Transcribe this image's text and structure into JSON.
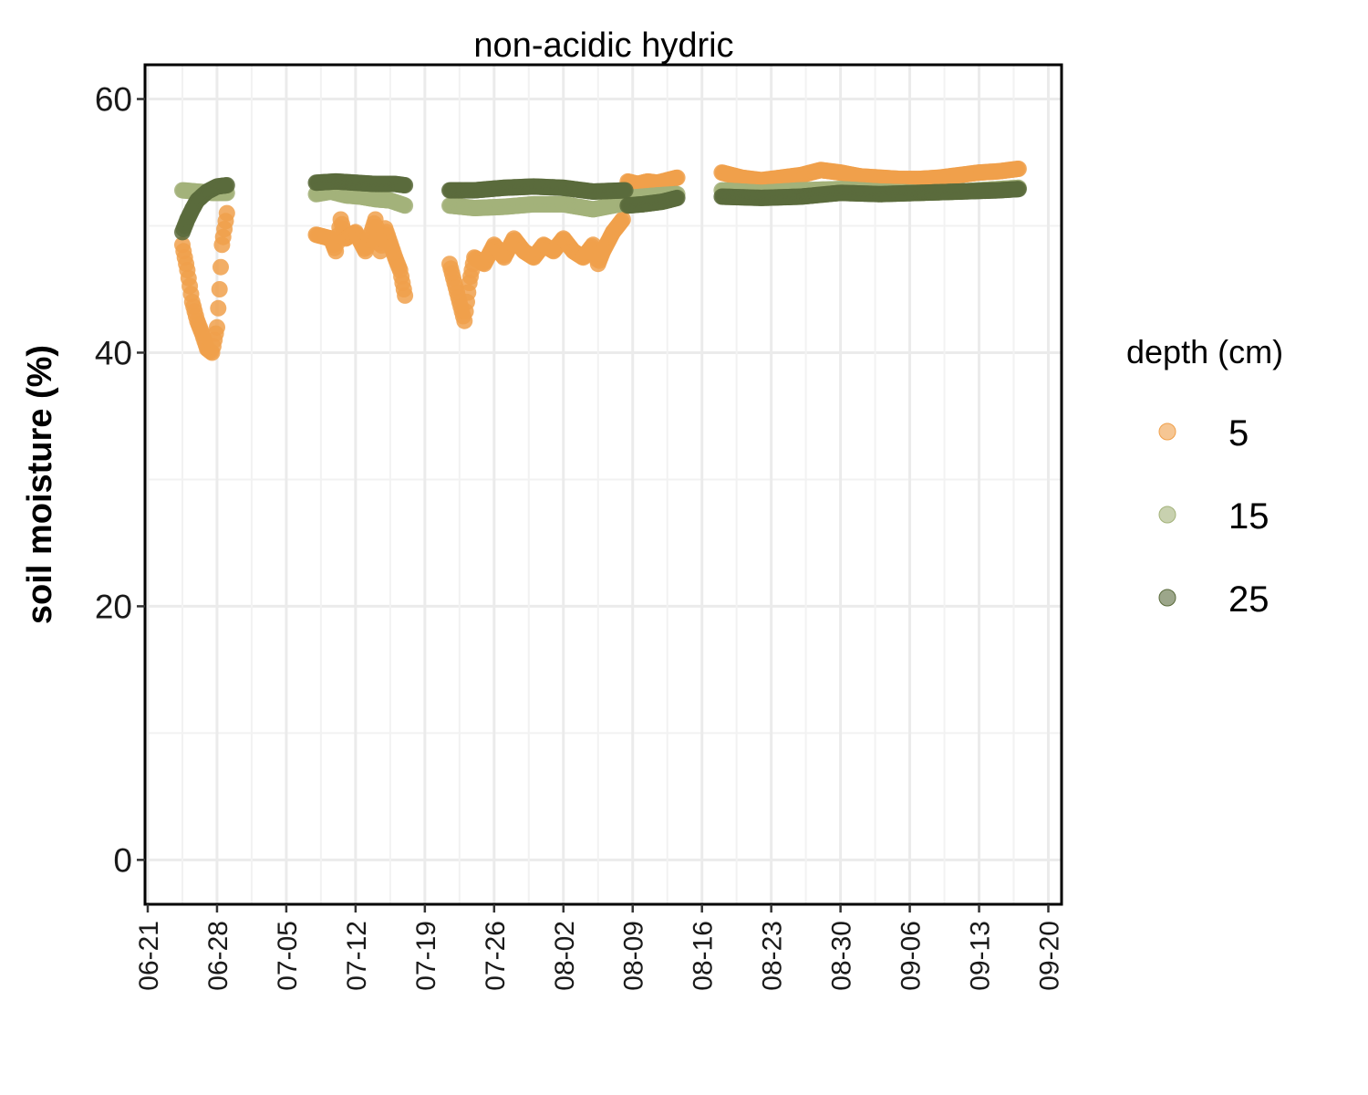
{
  "chart_data": {
    "type": "scatter",
    "title": "non-acidic hydric",
    "xlabel": "",
    "ylabel": "soil moisture (%)",
    "x_axis": {
      "type": "date",
      "year": 2021,
      "range": [
        "2021-06-21",
        "2021-09-20"
      ],
      "tick_labels": [
        "06-21",
        "06-28",
        "07-05",
        "07-12",
        "07-19",
        "07-26",
        "08-02",
        "08-09",
        "08-16",
        "08-23",
        "08-30",
        "09-06",
        "09-13",
        "09-20"
      ]
    },
    "ylim": [
      -3.5,
      62.7
    ],
    "y_ticks": [
      0,
      20,
      40,
      60
    ],
    "grid": true,
    "legend": {
      "title": "depth (cm)",
      "placement": "right"
    },
    "series": [
      {
        "name": "5",
        "color": "#F0A04B",
        "segments": [
          [
            [
              "2021-06-24 12:00",
              48.5
            ],
            [
              "2021-06-25 00:00",
              46.5
            ],
            [
              "2021-06-25 12:00",
              44.0
            ],
            [
              "2021-06-26 00:00",
              42.5
            ],
            [
              "2021-06-26 12:00",
              41.5
            ],
            [
              "2021-06-27 00:00",
              40.3
            ],
            [
              "2021-06-27 12:00",
              40.0
            ],
            [
              "2021-06-28 00:00",
              42.0
            ],
            [
              "2021-06-28 06:00",
              45.0
            ],
            [
              "2021-06-28 12:00",
              48.5
            ],
            [
              "2021-06-29 00:00",
              51.0
            ]
          ],
          [
            [
              "2021-07-08 00:00",
              49.3
            ],
            [
              "2021-07-09 12:00",
              49.0
            ],
            [
              "2021-07-10 00:00",
              48.0
            ],
            [
              "2021-07-10 12:00",
              50.5
            ],
            [
              "2021-07-11 00:00",
              49.0
            ],
            [
              "2021-07-12 00:00",
              49.5
            ],
            [
              "2021-07-13 00:00",
              48.0
            ],
            [
              "2021-07-14 00:00",
              50.5
            ],
            [
              "2021-07-14 12:00",
              48.0
            ],
            [
              "2021-07-15 00:00",
              49.8
            ],
            [
              "2021-07-16 00:00",
              47.5
            ],
            [
              "2021-07-16 12:00",
              46.5
            ],
            [
              "2021-07-17 00:00",
              44.5
            ]
          ],
          [
            [
              "2021-07-21 12:00",
              47.0
            ],
            [
              "2021-07-22 00:00",
              45.5
            ],
            [
              "2021-07-22 12:00",
              44.0
            ],
            [
              "2021-07-23 00:00",
              42.5
            ],
            [
              "2021-07-23 12:00",
              45.5
            ],
            [
              "2021-07-24 00:00",
              47.5
            ],
            [
              "2021-07-25 00:00",
              47.0
            ],
            [
              "2021-07-26 00:00",
              48.5
            ],
            [
              "2021-07-27 00:00",
              47.5
            ],
            [
              "2021-07-28 00:00",
              49.0
            ],
            [
              "2021-07-29 00:00",
              48.0
            ],
            [
              "2021-07-30 00:00",
              47.5
            ],
            [
              "2021-07-31 00:00",
              48.5
            ],
            [
              "2021-08-01 00:00",
              48.0
            ],
            [
              "2021-08-02 00:00",
              49.0
            ],
            [
              "2021-08-03 00:00",
              48.0
            ],
            [
              "2021-08-04 00:00",
              47.5
            ],
            [
              "2021-08-05 00:00",
              48.5
            ],
            [
              "2021-08-05 12:00",
              47.0
            ],
            [
              "2021-08-06 00:00",
              48.0
            ],
            [
              "2021-08-07 00:00",
              49.5
            ],
            [
              "2021-08-08 00:00",
              50.5
            ],
            [
              "2021-08-08 06:00",
              52.5
            ]
          ],
          [
            [
              "2021-08-08 12:00",
              53.5
            ],
            [
              "2021-08-09 12:00",
              53.3
            ],
            [
              "2021-08-10 12:00",
              53.5
            ],
            [
              "2021-08-11 12:00",
              53.4
            ],
            [
              "2021-08-12 12:00",
              53.6
            ],
            [
              "2021-08-13 12:00",
              53.8
            ]
          ],
          [
            [
              "2021-08-18 00:00",
              54.2
            ],
            [
              "2021-08-20 00:00",
              53.8
            ],
            [
              "2021-08-22 00:00",
              53.6
            ],
            [
              "2021-08-24 00:00",
              53.8
            ],
            [
              "2021-08-26 00:00",
              54.0
            ],
            [
              "2021-08-28 00:00",
              54.4
            ],
            [
              "2021-08-30 00:00",
              54.2
            ],
            [
              "2021-09-01 00:00",
              53.9
            ],
            [
              "2021-09-03 00:00",
              53.8
            ],
            [
              "2021-09-05 00:00",
              53.7
            ],
            [
              "2021-09-07 00:00",
              53.7
            ],
            [
              "2021-09-09 00:00",
              53.8
            ],
            [
              "2021-09-11 00:00",
              54.0
            ],
            [
              "2021-09-13 00:00",
              54.2
            ],
            [
              "2021-09-15 00:00",
              54.3
            ],
            [
              "2021-09-17 00:00",
              54.5
            ]
          ]
        ]
      },
      {
        "name": "15",
        "color": "#A3B27A",
        "segments": [
          [
            [
              "2021-06-24 12:00",
              52.8
            ],
            [
              "2021-06-26 00:00",
              52.7
            ],
            [
              "2021-06-27 12:00",
              52.6
            ],
            [
              "2021-06-29 00:00",
              52.6
            ]
          ],
          [
            [
              "2021-07-08 00:00",
              52.5
            ],
            [
              "2021-07-09 12:00",
              52.7
            ],
            [
              "2021-07-11 00:00",
              52.4
            ],
            [
              "2021-07-12 12:00",
              52.3
            ],
            [
              "2021-07-14 00:00",
              52.1
            ],
            [
              "2021-07-15 12:00",
              52.0
            ],
            [
              "2021-07-17 00:00",
              51.6
            ]
          ],
          [
            [
              "2021-07-21 12:00",
              51.6
            ],
            [
              "2021-07-24 00:00",
              51.4
            ],
            [
              "2021-07-27 00:00",
              51.5
            ],
            [
              "2021-07-30 00:00",
              51.7
            ],
            [
              "2021-08-02 00:00",
              51.7
            ],
            [
              "2021-08-05 00:00",
              51.3
            ],
            [
              "2021-08-07 00:00",
              51.6
            ],
            [
              "2021-08-08 06:00",
              51.8
            ]
          ],
          [
            [
              "2021-08-08 12:00",
              52.2
            ],
            [
              "2021-08-10 00:00",
              52.3
            ],
            [
              "2021-08-11 12:00",
              52.4
            ],
            [
              "2021-08-13 12:00",
              52.5
            ]
          ],
          [
            [
              "2021-08-18 00:00",
              52.8
            ],
            [
              "2021-08-22 00:00",
              52.6
            ],
            [
              "2021-08-26 00:00",
              52.8
            ],
            [
              "2021-08-30 00:00",
              52.9
            ],
            [
              "2021-09-03 00:00",
              52.7
            ],
            [
              "2021-09-07 00:00",
              52.6
            ],
            [
              "2021-09-11 00:00",
              52.7
            ],
            [
              "2021-09-15 00:00",
              52.9
            ],
            [
              "2021-09-17 00:00",
              53.0
            ]
          ]
        ]
      },
      {
        "name": "25",
        "color": "#5A6B3C",
        "segments": [
          [
            [
              "2021-06-24 12:00",
              49.5
            ],
            [
              "2021-06-25 00:00",
              50.5
            ],
            [
              "2021-06-25 12:00",
              51.3
            ],
            [
              "2021-06-26 00:00",
              52.0
            ],
            [
              "2021-06-27 00:00",
              52.7
            ],
            [
              "2021-06-28 00:00",
              53.1
            ],
            [
              "2021-06-29 00:00",
              53.2
            ]
          ],
          [
            [
              "2021-07-08 00:00",
              53.4
            ],
            [
              "2021-07-10 00:00",
              53.5
            ],
            [
              "2021-07-12 00:00",
              53.4
            ],
            [
              "2021-07-14 00:00",
              53.3
            ],
            [
              "2021-07-16 00:00",
              53.3
            ],
            [
              "2021-07-17 00:00",
              53.2
            ]
          ],
          [
            [
              "2021-07-21 12:00",
              52.8
            ],
            [
              "2021-07-24 00:00",
              52.8
            ],
            [
              "2021-07-27 00:00",
              53.0
            ],
            [
              "2021-07-30 00:00",
              53.1
            ],
            [
              "2021-08-02 00:00",
              53.0
            ],
            [
              "2021-08-05 00:00",
              52.7
            ],
            [
              "2021-08-08 06:00",
              52.8
            ]
          ],
          [
            [
              "2021-08-08 12:00",
              51.6
            ],
            [
              "2021-08-10 00:00",
              51.7
            ],
            [
              "2021-08-12 00:00",
              51.9
            ],
            [
              "2021-08-13 12:00",
              52.2
            ]
          ],
          [
            [
              "2021-08-18 00:00",
              52.3
            ],
            [
              "2021-08-22 00:00",
              52.2
            ],
            [
              "2021-08-26 00:00",
              52.3
            ],
            [
              "2021-08-30 00:00",
              52.6
            ],
            [
              "2021-09-03 00:00",
              52.5
            ],
            [
              "2021-09-07 00:00",
              52.6
            ],
            [
              "2021-09-11 00:00",
              52.7
            ],
            [
              "2021-09-15 00:00",
              52.8
            ],
            [
              "2021-09-17 00:00",
              52.9
            ]
          ]
        ]
      }
    ]
  }
}
